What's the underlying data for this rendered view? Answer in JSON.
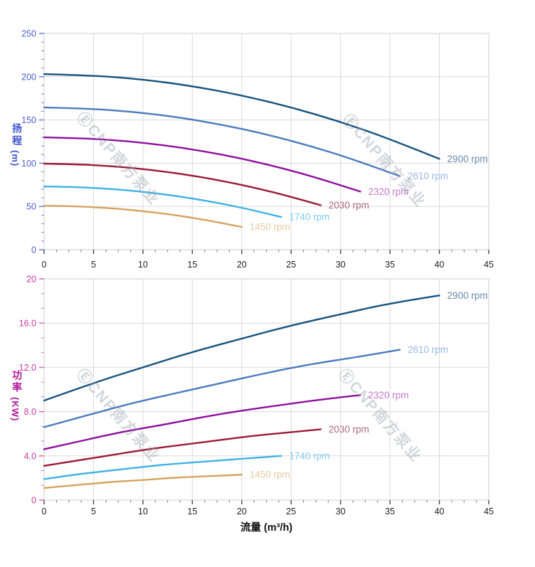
{
  "watermark": {
    "text": "ⒺCNP南方泵业"
  },
  "axes": {
    "head_title": "扬程",
    "head_unit": "(m)",
    "power_title": "功率",
    "power_unit": "(KW)",
    "flow_title": "流量 (m³/h)"
  },
  "colors": {
    "background": "#ffffff",
    "grid": "#d9d9d9",
    "plot_border": "#cccccc",
    "x_tick": "#444444",
    "x_minor_tick": "#777777",
    "x_tick_label": "#222222",
    "head_axis": "#3e53ce",
    "head_tick_label": "#4b5ed1",
    "head_tick": "#7386dd",
    "power_axis": "#b3189b",
    "power_tick_label": "#c93aa4",
    "power_tick": "#dd6fc0"
  },
  "chart_data": [
    {
      "type": "line",
      "title": "",
      "xlabel": "流量 (m³/h)",
      "ylabel": "扬程 (m)",
      "xlim": [
        0,
        45
      ],
      "ylim": [
        0,
        250
      ],
      "grid": true,
      "legend_position": "curve-end-labels",
      "x_tick_values": [
        0,
        5,
        10,
        15,
        20,
        25,
        30,
        35,
        40,
        45
      ],
      "x_tick_labels": [
        "0",
        "5",
        "10",
        "15",
        "20",
        "25",
        "30",
        "35",
        "40",
        "45"
      ],
      "x_minor_step": 1.25,
      "y_tick_values": [
        0,
        50,
        100,
        150,
        200,
        250
      ],
      "y_tick_labels": [
        "0",
        "50",
        "100",
        "150",
        "200",
        "250"
      ],
      "y_minor_step": 10,
      "y_tick_label_color": "#4b5ed1",
      "y_tick_color": "#7386dd",
      "series": [
        {
          "name": "2900 rpm",
          "color": "#16537e",
          "label_color": "#6589ad",
          "points": [
            [
              0,
              203.0
            ],
            [
              5,
              201.5
            ],
            [
              10,
              196.9
            ],
            [
              15,
              189.2
            ],
            [
              20,
              178.5
            ],
            [
              25,
              164.7
            ],
            [
              30,
              147.9
            ],
            [
              35,
              128.0
            ],
            [
              40,
              105.0
            ]
          ]
        },
        {
          "name": "2610 rpm",
          "color": "#4c7ac0",
          "label_color": "#9ab7e2",
          "points": [
            [
              0,
              164.4
            ],
            [
              4.5,
              163.2
            ],
            [
              9,
              159.5
            ],
            [
              13.5,
              153.3
            ],
            [
              18,
              144.6
            ],
            [
              22.5,
              133.4
            ],
            [
              27,
              119.8
            ],
            [
              31.5,
              103.7
            ],
            [
              36,
              85.1
            ]
          ]
        },
        {
          "name": "2320 rpm",
          "color": "#900f9e",
          "label_color": "#c478cc",
          "points": [
            [
              0,
              129.9
            ],
            [
              4,
              128.9
            ],
            [
              8,
              126.0
            ],
            [
              12,
              121.1
            ],
            [
              16,
              114.2
            ],
            [
              20,
              105.4
            ],
            [
              24,
              94.6
            ],
            [
              28,
              81.9
            ],
            [
              32,
              67.2
            ]
          ]
        },
        {
          "name": "2030 rpm",
          "color": "#9c1a38",
          "label_color": "#b06780",
          "points": [
            [
              0,
              99.5
            ],
            [
              3.5,
              98.7
            ],
            [
              7,
              96.5
            ],
            [
              10.5,
              92.7
            ],
            [
              14,
              87.5
            ],
            [
              17.5,
              80.7
            ],
            [
              21,
              72.5
            ],
            [
              24.5,
              62.7
            ],
            [
              28,
              51.4
            ]
          ]
        },
        {
          "name": "1740 rpm",
          "color": "#3fb1e5",
          "label_color": "#85cbf0",
          "points": [
            [
              0,
              73.1
            ],
            [
              3,
              72.5
            ],
            [
              6,
              70.9
            ],
            [
              9,
              68.1
            ],
            [
              12,
              64.3
            ],
            [
              15,
              59.3
            ],
            [
              18,
              53.2
            ],
            [
              21,
              46.1
            ],
            [
              24,
              37.8
            ]
          ]
        },
        {
          "name": "1450 rpm",
          "color": "#d6a35f",
          "label_color": "#e6c9a0",
          "points": [
            [
              0,
              50.8
            ],
            [
              2.5,
              50.4
            ],
            [
              5,
              49.2
            ],
            [
              7.5,
              47.3
            ],
            [
              10,
              44.6
            ],
            [
              12.5,
              41.2
            ],
            [
              15,
              37.0
            ],
            [
              17.5,
              32.0
            ],
            [
              20,
              26.3
            ]
          ]
        }
      ]
    },
    {
      "type": "line",
      "title": "",
      "xlabel": "流量 (m³/h)",
      "ylabel": "功率 (KW)",
      "xlim": [
        0,
        45
      ],
      "ylim": [
        0,
        20
      ],
      "grid": true,
      "legend_position": "curve-end-labels",
      "x_tick_values": [
        0,
        5,
        10,
        15,
        20,
        25,
        30,
        35,
        40,
        45
      ],
      "x_tick_labels": [
        "0",
        "5",
        "10",
        "15",
        "20",
        "25",
        "30",
        "35",
        "40",
        "45"
      ],
      "x_minor_step": 1.25,
      "y_tick_values": [
        0,
        4,
        8,
        12,
        16,
        20
      ],
      "y_tick_labels": [
        "0",
        "4.0",
        "8.0",
        "12.0",
        "16.0",
        "20"
      ],
      "y_minor_step": 1.3333,
      "y_tick_label_color": "#c93aa4",
      "y_tick_color": "#dd6fc0",
      "series": [
        {
          "name": "2900 rpm",
          "color": "#16537e",
          "label_color": "#6589ad",
          "points": [
            [
              0,
              9.0
            ],
            [
              5,
              10.6
            ],
            [
              10,
              12.0
            ],
            [
              15,
              13.4
            ],
            [
              20,
              14.6
            ],
            [
              25,
              15.8
            ],
            [
              30,
              16.8
            ],
            [
              35,
              17.8
            ],
            [
              40,
              18.5
            ]
          ]
        },
        {
          "name": "2610 rpm",
          "color": "#4c7ac0",
          "label_color": "#9ab7e2",
          "points": [
            [
              0,
              6.6
            ],
            [
              4.5,
              7.7
            ],
            [
              9,
              8.8
            ],
            [
              13.5,
              9.7
            ],
            [
              18,
              10.6
            ],
            [
              22.5,
              11.5
            ],
            [
              27,
              12.3
            ],
            [
              31.5,
              12.9
            ],
            [
              36,
              13.6
            ]
          ]
        },
        {
          "name": "2320 rpm",
          "color": "#900f9e",
          "label_color": "#c478cc",
          "points": [
            [
              0,
              4.6
            ],
            [
              4,
              5.4
            ],
            [
              8,
              6.2
            ],
            [
              12,
              6.8
            ],
            [
              16,
              7.5
            ],
            [
              20,
              8.1
            ],
            [
              24,
              8.6
            ],
            [
              28,
              9.1
            ],
            [
              32,
              9.5
            ]
          ]
        },
        {
          "name": "2030 rpm",
          "color": "#9c1a38",
          "label_color": "#b06780",
          "points": [
            [
              0,
              3.1
            ],
            [
              3.5,
              3.6
            ],
            [
              7,
              4.1
            ],
            [
              10.5,
              4.6
            ],
            [
              14,
              5.0
            ],
            [
              17.5,
              5.4
            ],
            [
              21,
              5.8
            ],
            [
              24.5,
              6.1
            ],
            [
              28,
              6.4
            ]
          ]
        },
        {
          "name": "1740 rpm",
          "color": "#3fb1e5",
          "label_color": "#85cbf0",
          "points": [
            [
              0,
              1.9
            ],
            [
              3,
              2.3
            ],
            [
              6,
              2.6
            ],
            [
              9,
              2.9
            ],
            [
              12,
              3.2
            ],
            [
              15,
              3.4
            ],
            [
              18,
              3.6
            ],
            [
              21,
              3.8
            ],
            [
              24,
              4.0
            ]
          ]
        },
        {
          "name": "1450 rpm",
          "color": "#d6a35f",
          "label_color": "#e6c9a0",
          "points": [
            [
              0,
              1.1
            ],
            [
              2.5,
              1.3
            ],
            [
              5,
              1.5
            ],
            [
              7.5,
              1.7
            ],
            [
              10,
              1.8
            ],
            [
              12.5,
              2.0
            ],
            [
              15,
              2.1
            ],
            [
              17.5,
              2.2
            ],
            [
              20,
              2.3
            ]
          ]
        }
      ]
    }
  ]
}
